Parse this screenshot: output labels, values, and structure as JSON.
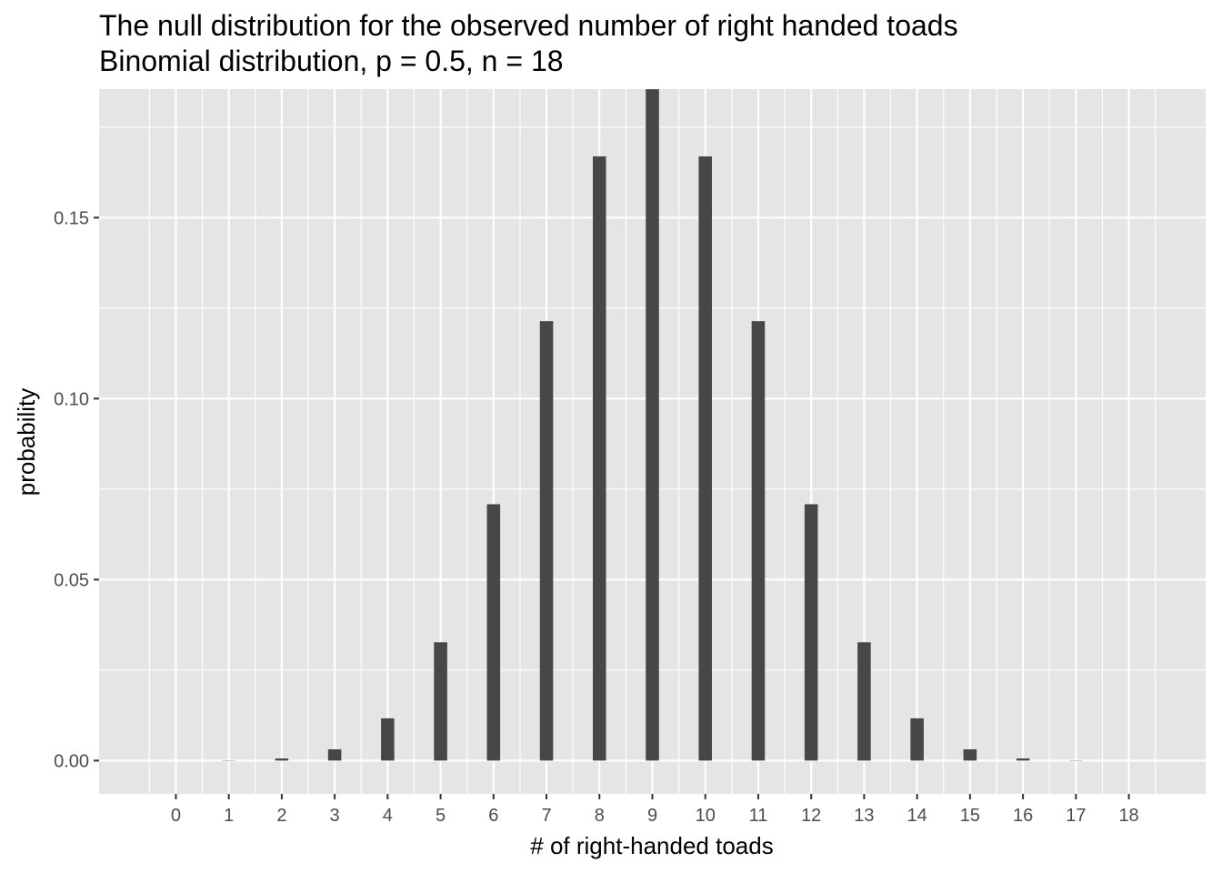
{
  "chart_data": {
    "type": "bar",
    "title": "The null distribution for the observed number of right handed toads",
    "subtitle": "Binomial distribution, p = 0.5, n = 18",
    "xlabel": "# of right-handed toads",
    "ylabel": "probability",
    "categories": [
      "0",
      "1",
      "2",
      "3",
      "4",
      "5",
      "6",
      "7",
      "8",
      "9",
      "10",
      "11",
      "12",
      "13",
      "14",
      "15",
      "16",
      "17",
      "18"
    ],
    "values": [
      3.8e-06,
      6.87e-05,
      0.000584,
      0.00311,
      0.01167,
      0.03268,
      0.07082,
      0.1214,
      0.16692,
      0.18547,
      0.16692,
      0.1214,
      0.07082,
      0.03268,
      0.01167,
      0.00311,
      0.000584,
      6.87e-05,
      3.8e-06
    ],
    "ylim": [
      -0.0092,
      0.1855
    ],
    "yticks": [
      "0.00",
      "0.05",
      "0.10",
      "0.15"
    ],
    "ytick_values": [
      0,
      0.05,
      0.1,
      0.15
    ],
    "grid": true,
    "legend": "none",
    "colors": {
      "panel": "#e5e5e5",
      "grid": "#ffffff",
      "bar": "#474747",
      "tick_text": "#4d4d4d"
    }
  }
}
